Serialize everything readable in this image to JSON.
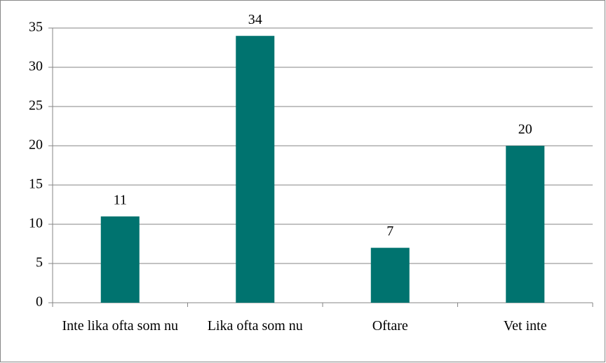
{
  "chart_data": {
    "type": "bar",
    "categories": [
      "Inte lika ofta som nu",
      "Lika ofta som nu",
      "Oftare",
      "Vet inte"
    ],
    "values": [
      11,
      34,
      7,
      20
    ],
    "color": "#00736f",
    "ylim": [
      0,
      35
    ],
    "yticks": [
      0,
      5,
      10,
      15,
      20,
      25,
      30,
      35
    ],
    "grid": true,
    "data_labels": true
  }
}
